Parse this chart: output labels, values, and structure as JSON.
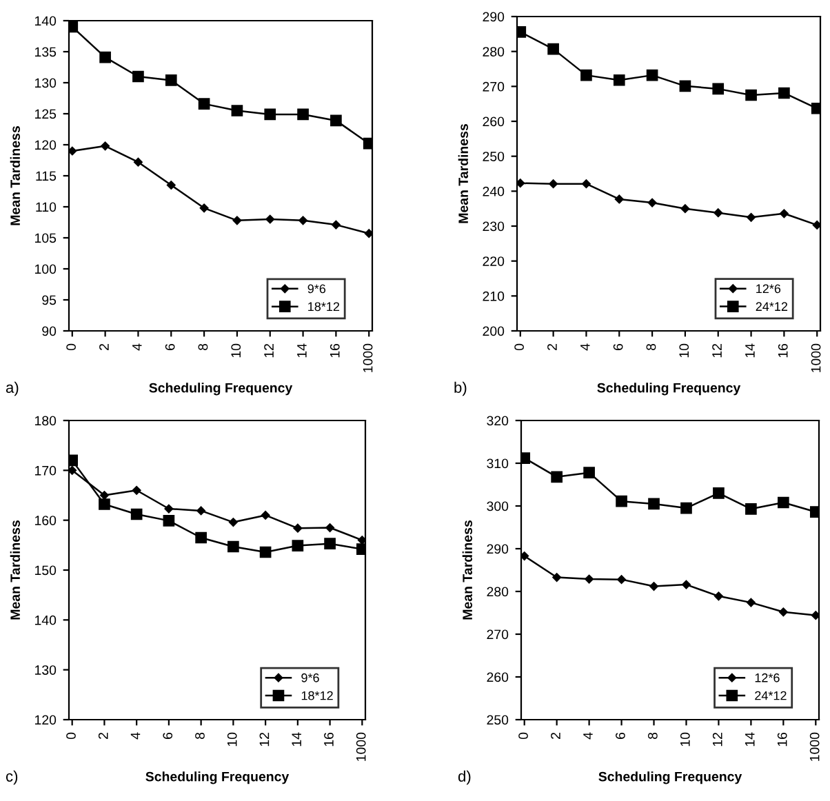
{
  "chart_data": [
    {
      "type": "line",
      "xlabel": "Scheduling Frequency",
      "ylabel": "Mean Tardiness",
      "annotations": [
        "a)"
      ],
      "categories": [
        "0",
        "2",
        "4",
        "6",
        "8",
        "10",
        "12",
        "14",
        "16",
        "1000"
      ],
      "ylim": [
        90,
        140
      ],
      "yticks": [
        90,
        95,
        100,
        105,
        110,
        115,
        120,
        125,
        130,
        135,
        140
      ],
      "grid": false,
      "legend": "bottom right",
      "series": [
        {
          "name": "9*6",
          "color": "#000000",
          "marker": "diamond",
          "values": [
            119,
            119.8,
            117.2,
            113.5,
            109.8,
            107.8,
            108,
            107.8,
            107.1,
            105.7
          ]
        },
        {
          "name": "18*12",
          "color": "#000000",
          "marker": "square",
          "values": [
            139,
            134.1,
            131,
            130.4,
            126.6,
            125.5,
            124.9,
            124.9,
            123.9,
            120.2
          ]
        }
      ]
    },
    {
      "type": "line",
      "xlabel": "Scheduling Frequency",
      "ylabel": "Mean Tardiness",
      "annotations": [
        "b)"
      ],
      "categories": [
        "0",
        "2",
        "4",
        "6",
        "8",
        "10",
        "12",
        "14",
        "16",
        "1000"
      ],
      "ylim": [
        200,
        290
      ],
      "yticks": [
        200,
        210,
        220,
        230,
        240,
        250,
        260,
        270,
        280,
        290
      ],
      "grid": false,
      "legend": "bottom right",
      "series": [
        {
          "name": "12*6",
          "color": "#000000",
          "marker": "diamond",
          "values": [
            242.3,
            242.1,
            242.1,
            237.7,
            236.7,
            235,
            233.8,
            232.5,
            233.6,
            230.3
          ]
        },
        {
          "name": "24*12",
          "color": "#000000",
          "marker": "square",
          "values": [
            285.6,
            280.7,
            273.2,
            271.8,
            273.2,
            270.1,
            269.3,
            267.5,
            268.1,
            263.7
          ]
        }
      ]
    },
    {
      "type": "line",
      "xlabel": "Scheduling Frequency",
      "ylabel": "Mean Tardiness",
      "annotations": [
        "c)"
      ],
      "categories": [
        "0",
        "2",
        "4",
        "6",
        "8",
        "10",
        "12",
        "14",
        "16",
        "1000"
      ],
      "ylim": [
        120,
        180
      ],
      "yticks": [
        120,
        130,
        140,
        150,
        160,
        170,
        180
      ],
      "grid": false,
      "legend": "bottom right",
      "series": [
        {
          "name": "9*6",
          "color": "#000000",
          "marker": "diamond",
          "values": [
            170,
            165,
            166,
            162.3,
            161.9,
            159.6,
            161,
            158.4,
            158.5,
            156
          ]
        },
        {
          "name": "18*12",
          "color": "#000000",
          "marker": "square",
          "values": [
            172,
            163.2,
            161.2,
            159.9,
            156.5,
            154.7,
            153.6,
            154.9,
            155.3,
            154.2
          ]
        }
      ]
    },
    {
      "type": "line",
      "xlabel": "Scheduling Frequency",
      "ylabel": "Mean Tardiness",
      "annotations": [
        "d)"
      ],
      "categories": [
        "0",
        "2",
        "4",
        "6",
        "8",
        "10",
        "12",
        "14",
        "16",
        "1000"
      ],
      "ylim": [
        250,
        320
      ],
      "yticks": [
        250,
        260,
        270,
        280,
        290,
        300,
        310,
        320
      ],
      "grid": false,
      "legend": "bottom right",
      "series": [
        {
          "name": "12*6",
          "color": "#000000",
          "marker": "diamond",
          "values": [
            288.3,
            283.3,
            282.9,
            282.8,
            281.2,
            281.6,
            278.9,
            277.4,
            275.2,
            274.4
          ]
        },
        {
          "name": "24*12",
          "color": "#000000",
          "marker": "square",
          "values": [
            311.2,
            306.8,
            307.8,
            301.1,
            300.5,
            299.5,
            303,
            299.3,
            300.8,
            298.6
          ]
        }
      ]
    }
  ]
}
